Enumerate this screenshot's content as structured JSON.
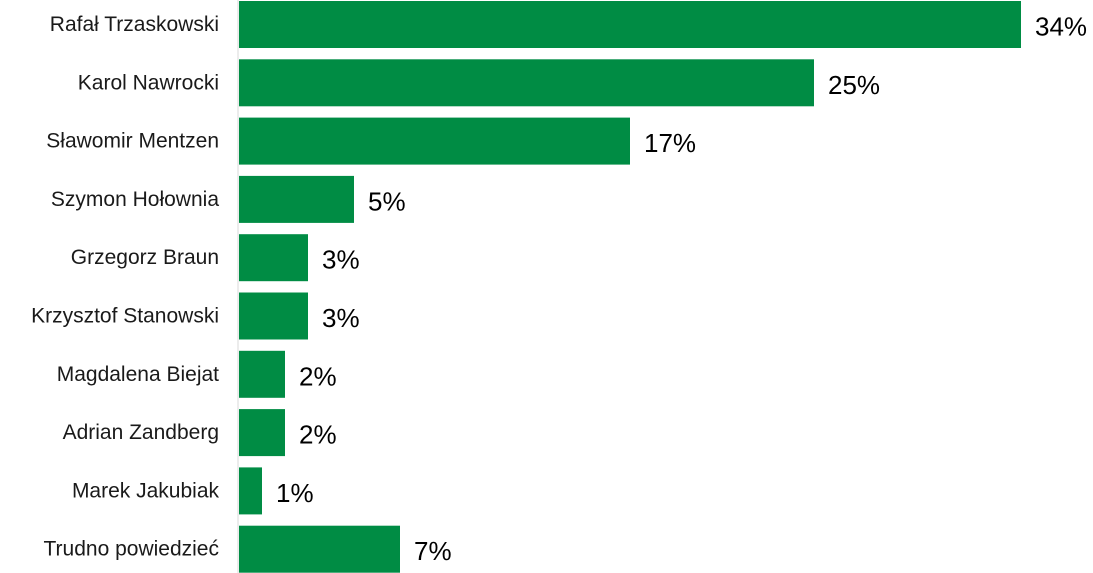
{
  "chart_data": {
    "type": "bar",
    "orientation": "horizontal",
    "categories": [
      "Rafał Trzaskowski",
      "Karol Nawrocki",
      "Sławomir Mentzen",
      "Szymon Hołownia",
      "Grzegorz Braun",
      "Krzysztof Stanowski",
      "Magdalena Biejat",
      "Adrian Zandberg",
      "Marek Jakubiak",
      "Trudno powiedzieć"
    ],
    "values": [
      34,
      25,
      17,
      5,
      3,
      3,
      2,
      2,
      1,
      7
    ],
    "value_labels": [
      "34%",
      "25%",
      "17%",
      "5%",
      "3%",
      "3%",
      "2%",
      "2%",
      "1%",
      "7%"
    ],
    "title": "",
    "xlabel": "",
    "ylabel": "",
    "xlim": [
      0,
      34
    ],
    "grid": false,
    "legend": "none",
    "bar_color": "#008c44"
  }
}
